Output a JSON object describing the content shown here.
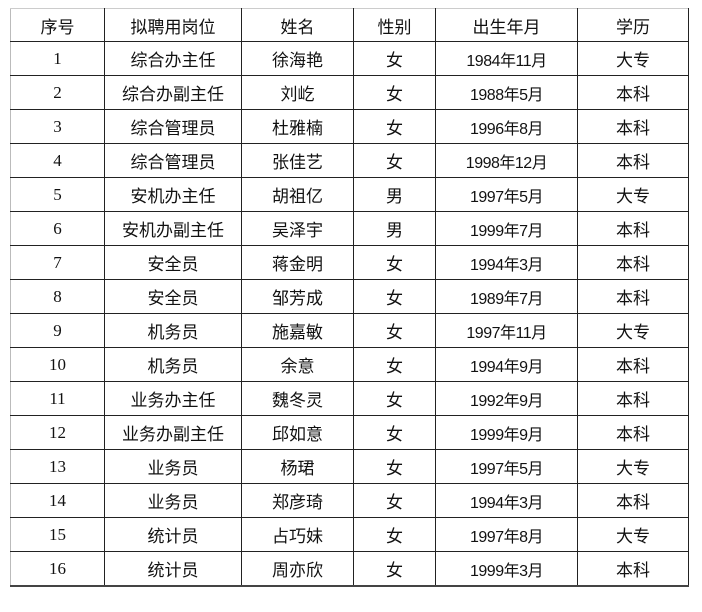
{
  "headers": [
    "序号",
    "拟聘用岗位",
    "姓名",
    "性别",
    "出生年月",
    "学历"
  ],
  "rows": [
    [
      "1",
      "综合办主任",
      "徐海艳",
      "女",
      "1984年11月",
      "大专"
    ],
    [
      "2",
      "综合办副主任",
      "刘屹",
      "女",
      "1988年5月",
      "本科"
    ],
    [
      "3",
      "综合管理员",
      "杜雅楠",
      "女",
      "1996年8月",
      "本科"
    ],
    [
      "4",
      "综合管理员",
      "张佳艺",
      "女",
      "1998年12月",
      "本科"
    ],
    [
      "5",
      "安机办主任",
      "胡祖亿",
      "男",
      "1997年5月",
      "大专"
    ],
    [
      "6",
      "安机办副主任",
      "吴泽宇",
      "男",
      "1999年7月",
      "本科"
    ],
    [
      "7",
      "安全员",
      "蒋金明",
      "女",
      "1994年3月",
      "本科"
    ],
    [
      "8",
      "安全员",
      "邹芳成",
      "女",
      "1989年7月",
      "本科"
    ],
    [
      "9",
      "机务员",
      "施嘉敏",
      "女",
      "1997年11月",
      "大专"
    ],
    [
      "10",
      "机务员",
      "余意",
      "女",
      "1994年9月",
      "本科"
    ],
    [
      "11",
      "业务办主任",
      "魏冬灵",
      "女",
      "1992年9月",
      "本科"
    ],
    [
      "12",
      "业务办副主任",
      "邱如意",
      "女",
      "1999年9月",
      "本科"
    ],
    [
      "13",
      "业务员",
      "杨珺",
      "女",
      "1997年5月",
      "大专"
    ],
    [
      "14",
      "业务员",
      "郑彦琦",
      "女",
      "1994年3月",
      "本科"
    ],
    [
      "15",
      "统计员",
      "占巧妹",
      "女",
      "1997年8月",
      "大专"
    ],
    [
      "16",
      "统计员",
      "周亦欣",
      "女",
      "1999年3月",
      "本科"
    ]
  ]
}
